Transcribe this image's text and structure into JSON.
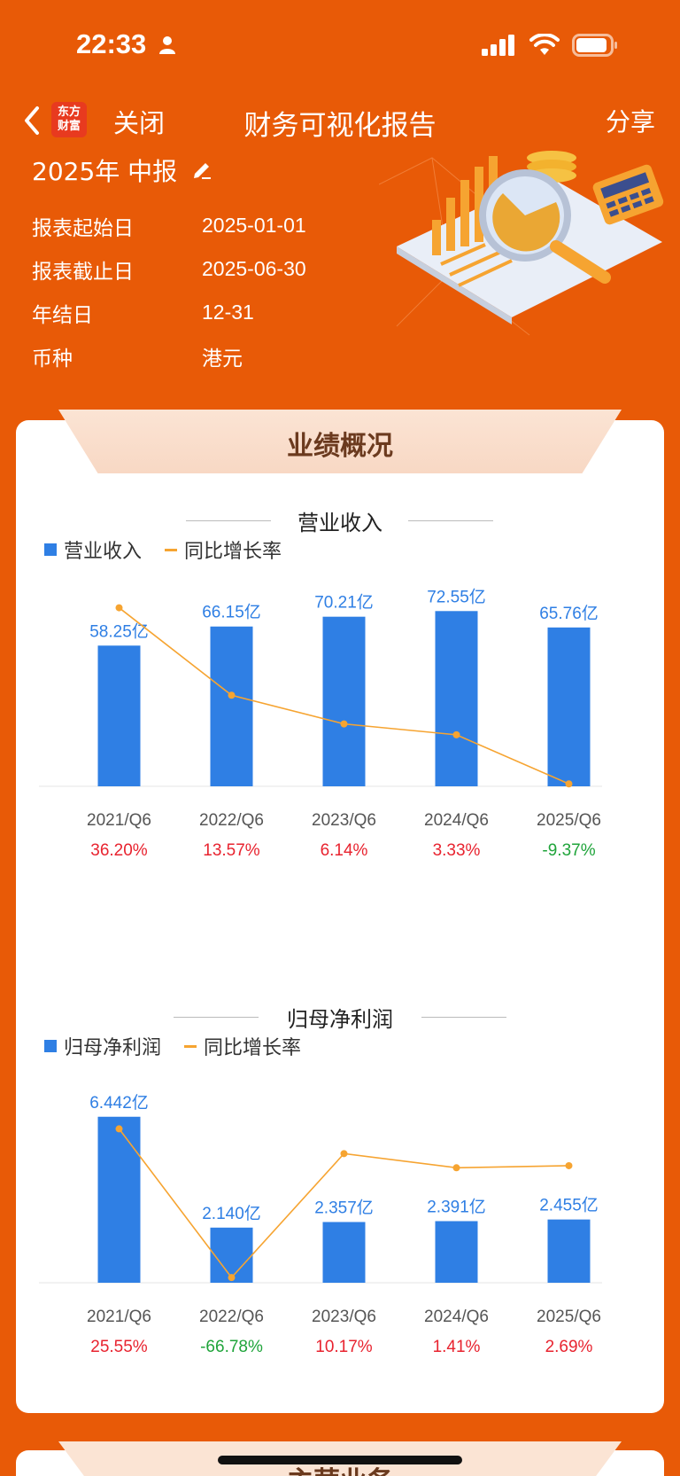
{
  "status": {
    "time": "22:33"
  },
  "nav": {
    "logo_text_1": "东方",
    "logo_text_2": "财富",
    "close": "关闭",
    "title": "财务可视化报告",
    "share": "分享"
  },
  "report": {
    "period": "2025年 中报",
    "rows": [
      {
        "label": "报表起始日",
        "value": "2025-01-01"
      },
      {
        "label": "报表截止日",
        "value": "2025-06-30"
      },
      {
        "label": "年结日",
        "value": "12-31"
      },
      {
        "label": "币种",
        "value": "港元"
      }
    ]
  },
  "card": {
    "title": "业绩概况"
  },
  "next_card": {
    "title": "主营业务"
  },
  "colors": {
    "bar": "#2F7FE4",
    "line": "#F6A431",
    "up": "#E8232F",
    "down": "#1FA43A"
  },
  "chart_data": [
    {
      "type": "bar",
      "title": "营业收入",
      "legend": [
        "营业收入",
        "同比增长率"
      ],
      "categories": [
        "2021/Q6",
        "2022/Q6",
        "2023/Q6",
        "2024/Q6",
        "2025/Q6"
      ],
      "values": [
        58.25,
        66.15,
        70.21,
        72.55,
        65.76
      ],
      "value_labels": [
        "58.25亿",
        "66.15亿",
        "70.21亿",
        "72.55亿",
        "65.76亿"
      ],
      "growth": [
        36.2,
        13.57,
        6.14,
        3.33,
        -9.37
      ],
      "growth_labels": [
        "36.20%",
        "13.57%",
        "6.14%",
        "3.33%",
        "-9.37%"
      ],
      "ylim": [
        0,
        80
      ],
      "growth_lim": [
        -10,
        40
      ]
    },
    {
      "type": "bar",
      "title": "归母净利润",
      "legend": [
        "归母净利润",
        "同比增长率"
      ],
      "categories": [
        "2021/Q6",
        "2022/Q6",
        "2023/Q6",
        "2024/Q6",
        "2025/Q6"
      ],
      "values": [
        6.442,
        2.14,
        2.357,
        2.391,
        2.455
      ],
      "value_labels": [
        "6.442亿",
        "2.140亿",
        "2.357亿",
        "2.391亿",
        "2.455亿"
      ],
      "growth": [
        25.55,
        -66.78,
        10.17,
        1.41,
        2.69
      ],
      "growth_labels": [
        "25.55%",
        "-66.78%",
        "10.17%",
        "1.41%",
        "2.69%"
      ],
      "ylim": [
        0,
        7.5
      ],
      "growth_lim": [
        -70,
        50
      ]
    }
  ]
}
